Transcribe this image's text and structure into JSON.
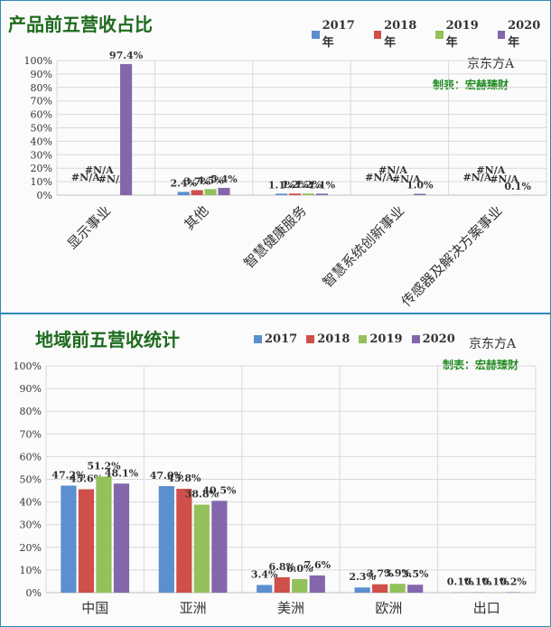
{
  "charts": [
    {
      "title": "产品前五营收占比",
      "brand": "京东方A",
      "credit": "制表：宏赫臻财",
      "legend": [
        "2017年",
        "2018年",
        "2019年",
        "2020年"
      ],
      "chart_data": {
        "type": "bar",
        "categories": [
          "显示事业",
          "其他",
          "智慧健康服务",
          "智慧系统创新事业",
          "传感器及解决方案事业"
        ],
        "series": [
          {
            "name": "2017年",
            "values": [
              null,
              2.4,
              1.1,
              null,
              null
            ],
            "labels": [
              "#N/A",
              "2.4%",
              "1.1%",
              "#N/A",
              "#N/A"
            ]
          },
          {
            "name": "2018年",
            "values": [
              null,
              3.7,
              1.2,
              null,
              null
            ],
            "labels": [
              "#N/A",
              "3.7%",
              "1.2%",
              "#N/A",
              "#N/A"
            ]
          },
          {
            "name": "2019年",
            "values": [
              null,
              4.5,
              1.2,
              null,
              null
            ],
            "labels": [
              "#N/A",
              "4.5%",
              "1.2%",
              "#N/A",
              "#N/A"
            ]
          },
          {
            "name": "2020年",
            "values": [
              97.4,
              5.4,
              1.1,
              1.0,
              0.1
            ],
            "labels": [
              "97.4%",
              "5.4%",
              "1.1%",
              "1.0%",
              "0.1%"
            ]
          }
        ],
        "ylim": [
          0,
          100
        ],
        "yticks": [
          "0%",
          "10%",
          "20%",
          "30%",
          "40%",
          "50%",
          "60%",
          "70%",
          "80%",
          "90%",
          "100%"
        ],
        "grid": true,
        "legend_position": "top-right"
      }
    },
    {
      "title": "地域前五营收统计",
      "brand": "京东方A",
      "credit": "制表：宏赫臻财",
      "legend": [
        "2017",
        "2018",
        "2019",
        "2020"
      ],
      "chart_data": {
        "type": "bar",
        "categories": [
          "中国",
          "亚洲",
          "美洲",
          "欧洲",
          "出口"
        ],
        "series": [
          {
            "name": "2017",
            "values": [
              47.2,
              47.0,
              3.4,
              2.3,
              0.1
            ],
            "labels": [
              "47.2%",
              "47.0%",
              "3.4%",
              "2.3%",
              "0.1%"
            ]
          },
          {
            "name": "2018",
            "values": [
              45.6,
              45.8,
              6.8,
              3.7,
              0.1
            ],
            "labels": [
              "45.6%",
              "45.8%",
              "6.8%",
              "3.7%",
              "0.1%"
            ]
          },
          {
            "name": "2019",
            "values": [
              51.2,
              38.8,
              6.0,
              3.9,
              0.1
            ],
            "labels": [
              "51.2%",
              "38.8%",
              "6.0%",
              "3.9%",
              "0.1%"
            ]
          },
          {
            "name": "2020",
            "values": [
              48.1,
              40.5,
              7.6,
              3.5,
              0.2
            ],
            "labels": [
              "48.1%",
              "40.5%",
              "7.6%",
              "3.5%",
              "0.2%"
            ]
          }
        ],
        "ylim": [
          0,
          100
        ],
        "yticks": [
          "0%",
          "10%",
          "20%",
          "30%",
          "40%",
          "50%",
          "60%",
          "70%",
          "80%",
          "90%",
          "100%"
        ],
        "grid": true,
        "legend_position": "top"
      }
    }
  ],
  "colors": {
    "series": [
      "#5b8fcf",
      "#cf4f4a",
      "#93c15a",
      "#8466ac"
    ],
    "title": "#1e6b1e",
    "credit": "#1e8a1e",
    "border": "#2e8ab8"
  }
}
